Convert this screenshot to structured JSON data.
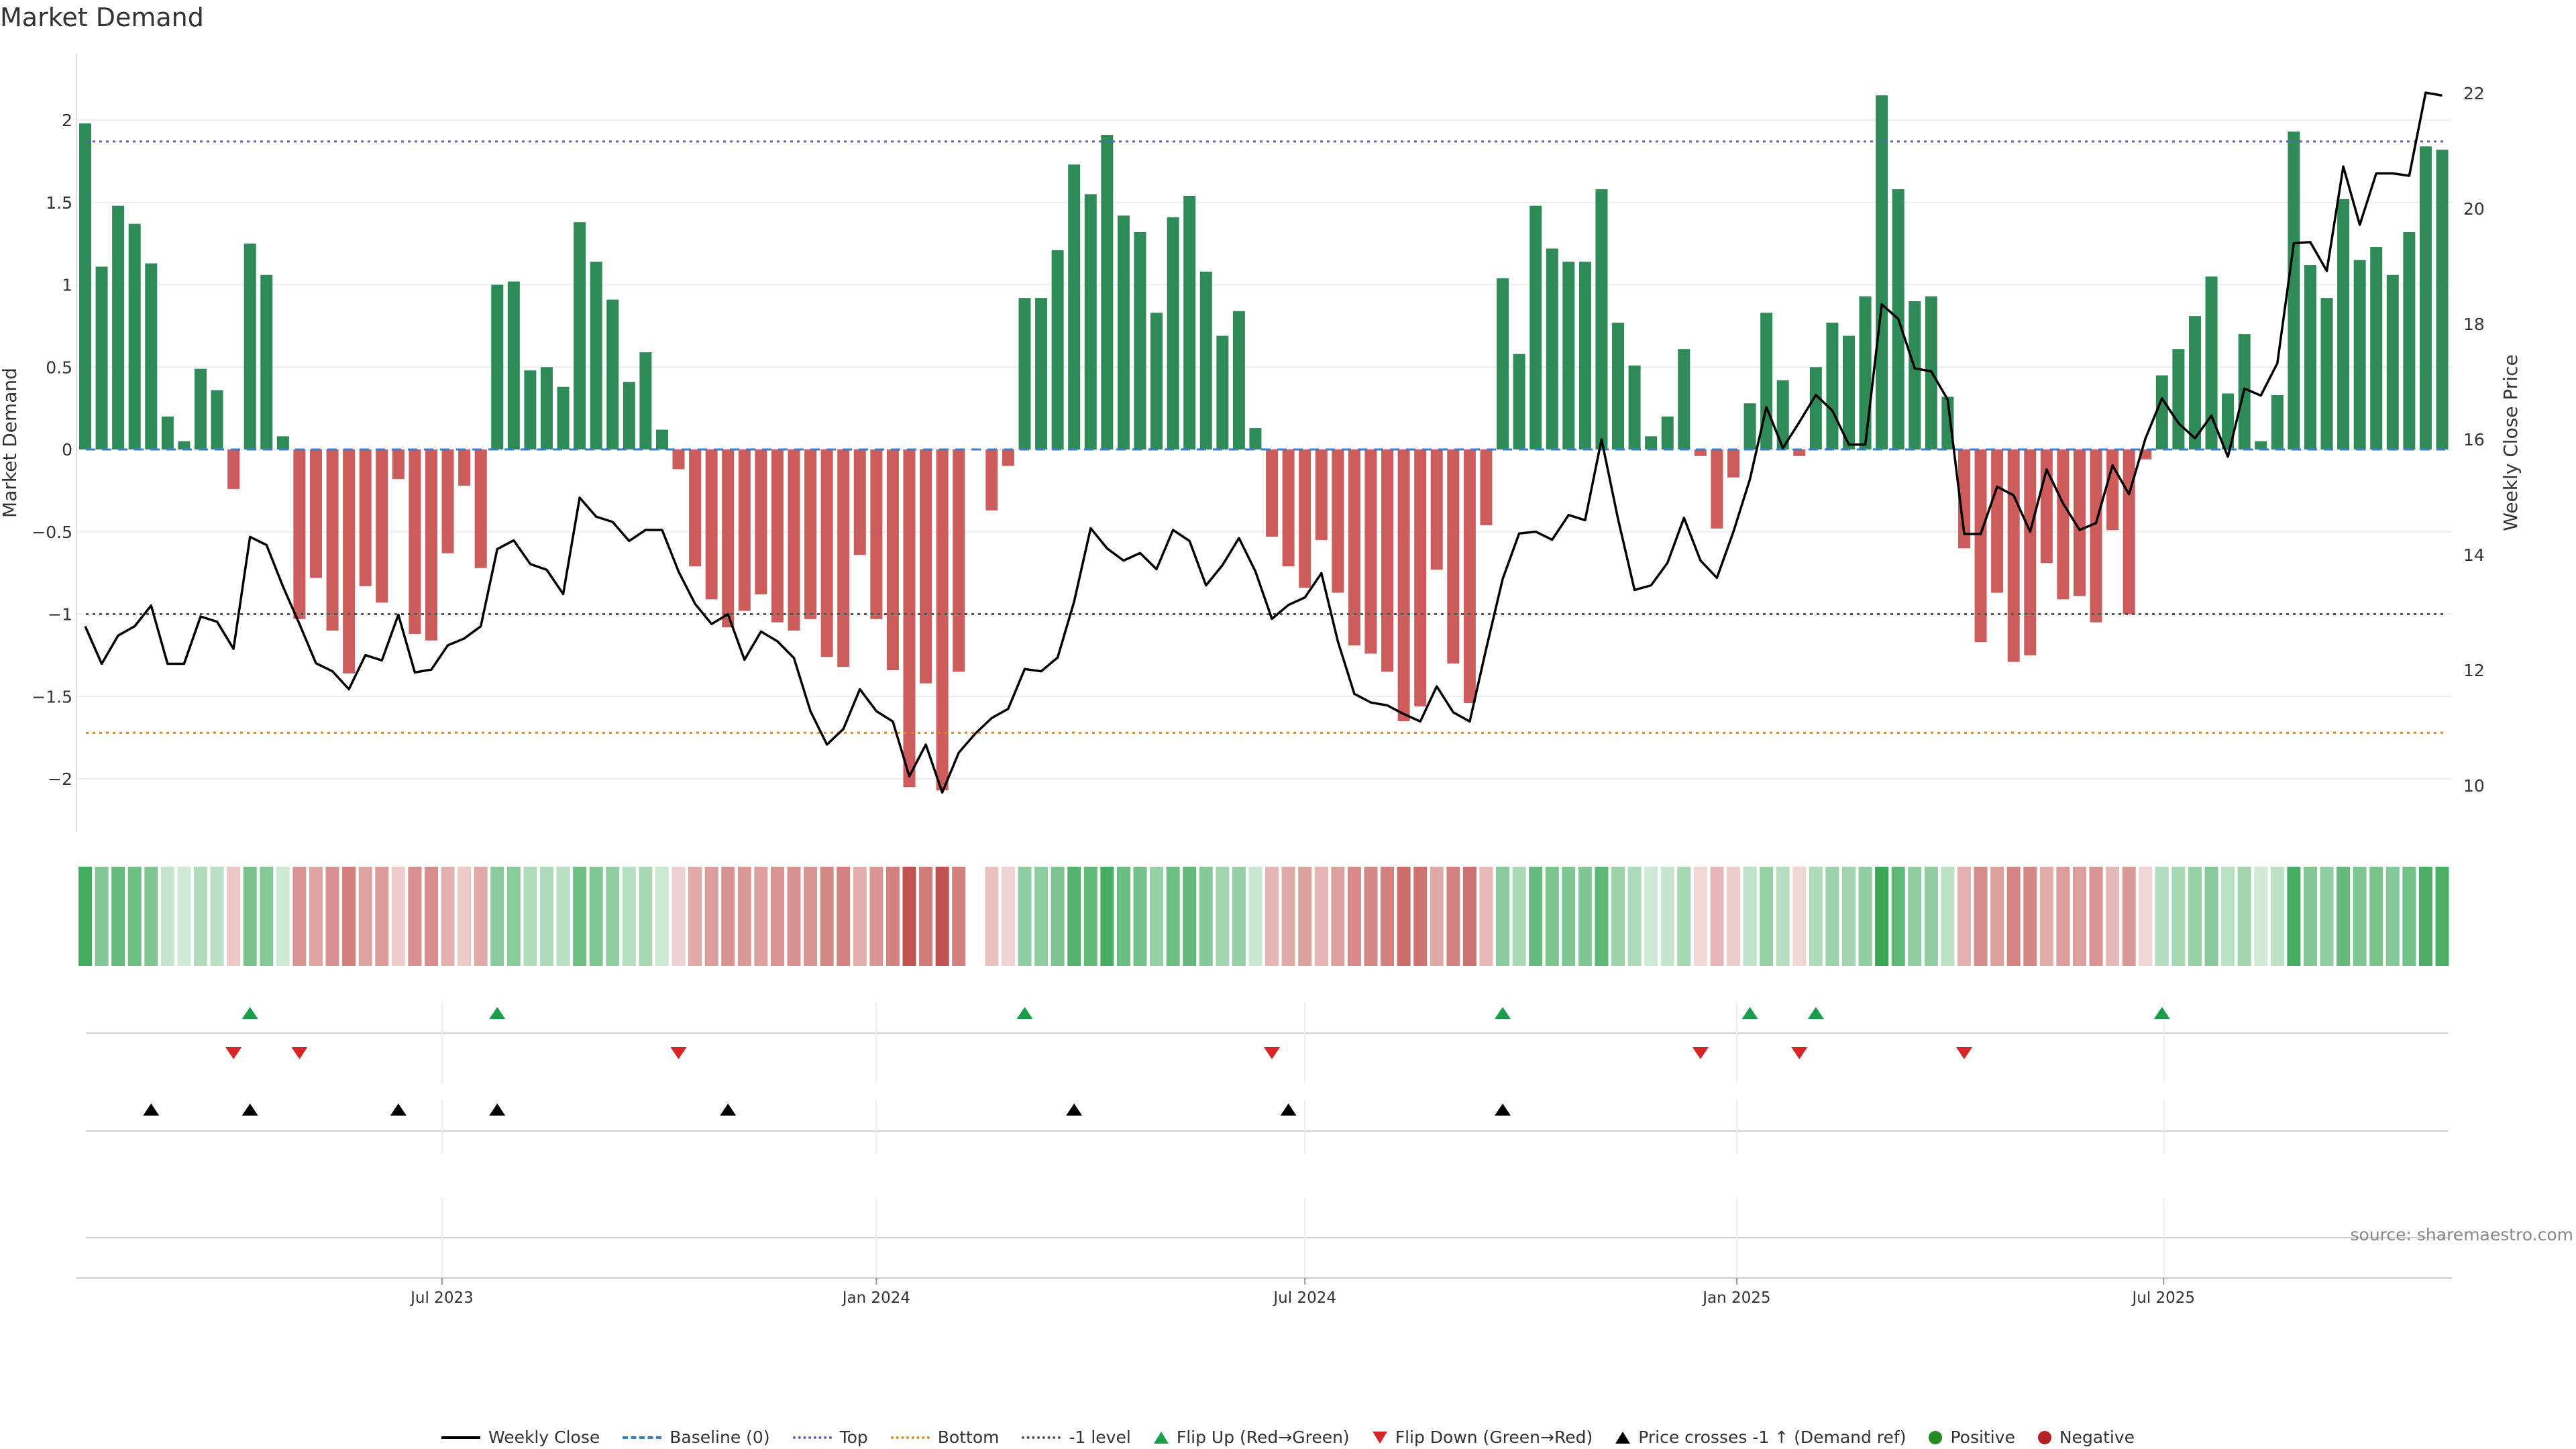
{
  "title": "Market Demand",
  "source": "source: sharemaestro.com",
  "colors": {
    "positive": "#2e8b57",
    "negative": "#cd5c5c",
    "top": "#6a5acd",
    "bottom": "#e08a1e",
    "minus1": "#555555",
    "baseline": "#3a7dc9",
    "flip_up": "#1a9e4a",
    "flip_down": "#d62728",
    "cross": "#000000",
    "legend_pos": "#228b22",
    "legend_neg": "#b22222",
    "heat_pos": "#3aa757",
    "heat_neg": "#c0504d"
  },
  "legend": [
    {
      "label": "Weekly Close",
      "kind": "line",
      "style": "solid",
      "color": "#000000"
    },
    {
      "label": "Baseline (0)",
      "kind": "line",
      "style": "dashed",
      "color": "#3a7dc9"
    },
    {
      "label": "Top",
      "kind": "line",
      "style": "dotted",
      "color": "#6a5acd"
    },
    {
      "label": "Bottom",
      "kind": "line",
      "style": "dotted",
      "color": "#e08a1e"
    },
    {
      "label": "-1 level",
      "kind": "line",
      "style": "dotted",
      "color": "#555555"
    },
    {
      "label": "Flip Up (Red→Green)",
      "kind": "up",
      "color": "#1a9e4a"
    },
    {
      "label": "Flip Down (Green→Red)",
      "kind": "down",
      "color": "#d62728"
    },
    {
      "label": "Price crosses -1 ↑ (Demand ref)",
      "kind": "up",
      "color": "#000000"
    },
    {
      "label": "Positive",
      "kind": "dot",
      "color": "#228b22"
    },
    {
      "label": "Negative",
      "kind": "dot",
      "color": "#b22222"
    }
  ],
  "chart_data": {
    "type": "bar",
    "title": "Market Demand",
    "ylabel": "Market Demand",
    "y2label": "Weekly Close Price",
    "ylim": [
      -2.35,
      2.4
    ],
    "y2lim": [
      9.5,
      22.5
    ],
    "yticks": [
      2,
      1.5,
      1,
      0.5,
      0,
      -0.5,
      -1,
      -1.5,
      -2
    ],
    "ytick_labels": [
      "2",
      "1.5",
      "1",
      "0.5",
      "0",
      "−0.5",
      "−1",
      "−1.5",
      "−2"
    ],
    "y2ticks": [
      22,
      20,
      18,
      16,
      14,
      12,
      10
    ],
    "y2tick_labels": [
      "22",
      "20",
      "18",
      "16",
      "14",
      "12",
      "10"
    ],
    "xticks": [
      {
        "label": "Jul 2023",
        "week": 21.65
      },
      {
        "label": "Jan 2024",
        "week": 48.0
      },
      {
        "label": "Jul 2024",
        "week": 74.0
      },
      {
        "label": "Jan 2025",
        "week": 100.2
      },
      {
        "label": "Jul 2025",
        "week": 126.1
      }
    ],
    "levels": {
      "top": 1.87,
      "bottom": -1.72,
      "minus1": -1,
      "baseline": 0
    },
    "demand": [
      1.98,
      1.11,
      1.48,
      1.37,
      1.13,
      0.2,
      0.05,
      0.49,
      0.36,
      -0.24,
      1.25,
      1.06,
      0.08,
      -1.03,
      -0.78,
      -1.1,
      -1.36,
      -0.83,
      -0.93,
      -0.18,
      -1.12,
      -1.16,
      -0.63,
      -0.22,
      -0.72,
      1.0,
      1.02,
      0.48,
      0.5,
      0.38,
      1.38,
      1.14,
      0.91,
      0.41,
      0.59,
      0.12,
      -0.12,
      -0.71,
      -0.91,
      -1.08,
      -0.98,
      -0.88,
      -1.05,
      -1.1,
      -1.03,
      -1.26,
      -1.32,
      -0.64,
      -1.03,
      -1.34,
      -2.05,
      -1.42,
      -2.07,
      -1.35,
      0,
      -0.37,
      -0.1,
      0.92,
      0.92,
      1.21,
      1.73,
      1.55,
      1.91,
      1.42,
      1.32,
      0.83,
      1.41,
      1.54,
      1.08,
      0.69,
      0.84,
      0.13,
      -0.53,
      -0.71,
      -0.84,
      -0.55,
      -0.87,
      -1.19,
      -1.24,
      -1.35,
      -1.65,
      -1.56,
      -0.73,
      -1.3,
      -1.54,
      -0.46,
      1.04,
      0.58,
      1.48,
      1.22,
      1.14,
      1.14,
      1.58,
      0.77,
      0.51,
      0.08,
      0.2,
      0.61,
      -0.04,
      -0.48,
      -0.17,
      0.28,
      0.83,
      0.42,
      -0.04,
      0.5,
      0.77,
      0.69,
      0.93,
      2.15,
      1.58,
      0.9,
      0.93,
      0.32,
      -0.6,
      -1.17,
      -0.87,
      -1.29,
      -1.25,
      -0.69,
      -0.91,
      -0.89,
      -1.05,
      -0.49,
      -1.0,
      -0.06,
      0.45,
      0.61,
      0.81,
      1.05,
      0.34,
      0.7,
      0.05,
      0.33,
      1.93,
      1.12,
      0.92,
      1.52,
      1.15,
      1.23,
      1.06,
      1.32,
      1.84,
      1.82
    ],
    "weekly_close": [
      12.76,
      12.11,
      12.6,
      12.76,
      13.12,
      12.11,
      12.11,
      12.93,
      12.84,
      12.37,
      14.31,
      14.17,
      13.45,
      12.8,
      12.12,
      11.98,
      11.67,
      12.26,
      12.17,
      12.96,
      11.96,
      12.01,
      12.43,
      12.55,
      12.76,
      14.1,
      14.25,
      13.84,
      13.74,
      13.32,
      14.99,
      14.66,
      14.57,
      14.24,
      14.43,
      14.43,
      13.71,
      13.15,
      12.8,
      12.97,
      12.18,
      12.67,
      12.5,
      12.21,
      11.29,
      10.71,
      10.98,
      11.67,
      11.29,
      11.11,
      10.16,
      10.71,
      9.88,
      10.57,
      10.9,
      11.17,
      11.33,
      12.02,
      11.98,
      12.22,
      13.19,
      14.46,
      14.11,
      13.9,
      14.03,
      13.75,
      14.43,
      14.24,
      13.47,
      13.82,
      14.29,
      13.71,
      12.89,
      13.13,
      13.26,
      13.68,
      12.5,
      11.59,
      11.44,
      11.39,
      11.24,
      11.11,
      11.72,
      11.27,
      11.11,
      12.37,
      13.58,
      14.37,
      14.4,
      14.26,
      14.69,
      14.6,
      16.0,
      14.62,
      13.39,
      13.47,
      13.86,
      14.64,
      13.9,
      13.6,
      14.4,
      15.31,
      16.56,
      15.85,
      16.3,
      16.77,
      16.5,
      15.91,
      15.91,
      18.34,
      18.09,
      17.23,
      17.18,
      16.69,
      14.36,
      14.36,
      15.18,
      15.03,
      14.4,
      15.48,
      14.89,
      14.43,
      14.55,
      15.55,
      15.05,
      16.02,
      16.71,
      16.28,
      16.02,
      16.41,
      15.7,
      16.88,
      16.76,
      17.32,
      19.4,
      19.42,
      18.92,
      20.73,
      19.72,
      20.61,
      20.61,
      20.57,
      22.01,
      21.96
    ],
    "flip_up_weeks": [
      10,
      25,
      57,
      86,
      101,
      105,
      126
    ],
    "flip_down_weeks": [
      9,
      13,
      36,
      72,
      98,
      104,
      114
    ],
    "price_cross_weeks": [
      4,
      10,
      19,
      25,
      39,
      60,
      73,
      86
    ]
  }
}
